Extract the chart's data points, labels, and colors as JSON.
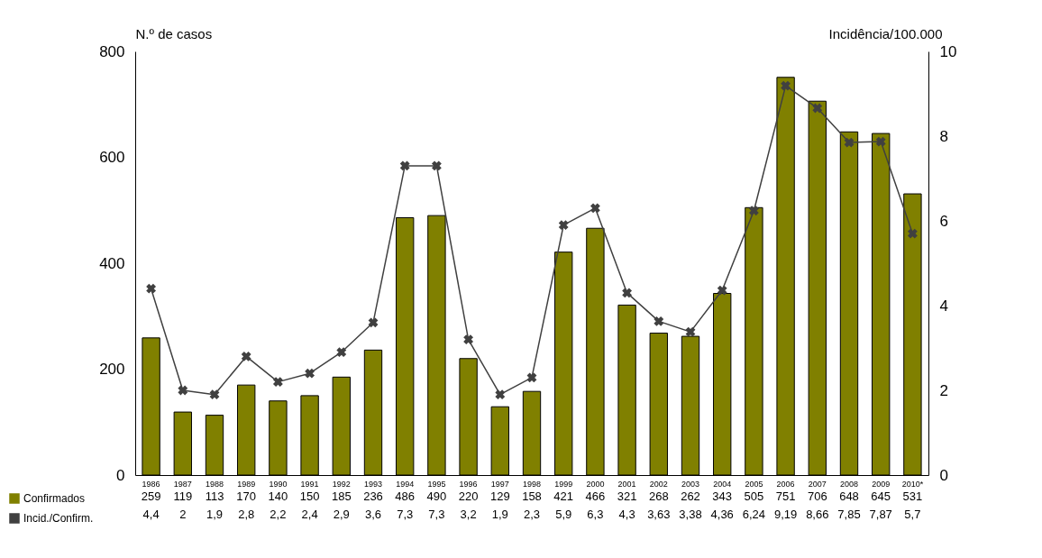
{
  "chart_data": {
    "type": "bar",
    "categories": [
      "1986",
      "1987",
      "1988",
      "1989",
      "1990",
      "1991",
      "1992",
      "1993",
      "1994",
      "1995",
      "1996",
      "1997",
      "1998",
      "1999",
      "2000",
      "2001",
      "2002",
      "2003",
      "2004",
      "2005",
      "2006",
      "2007",
      "2008",
      "2009",
      "2010*"
    ],
    "ylabel": "N.º de casos",
    "y2label": "Incidência/100.000",
    "ylim": [
      0,
      800
    ],
    "yticks": [
      0,
      200,
      400,
      600,
      800
    ],
    "y2lim": [
      0,
      10
    ],
    "y2ticks": [
      0,
      2,
      4,
      6,
      8,
      10
    ],
    "series": [
      {
        "name": "Confirmados",
        "color": "#808000",
        "values": [
          259,
          119,
          113,
          170,
          140,
          150,
          185,
          236,
          486,
          490,
          220,
          129,
          158,
          421,
          466,
          321,
          268,
          262,
          343,
          505,
          751,
          706,
          648,
          645,
          531
        ],
        "value_labels": [
          "259",
          "119",
          "113",
          "170",
          "140",
          "150",
          "185",
          "236",
          "486",
          "490",
          "220",
          "129",
          "158",
          "421",
          "466",
          "321",
          "268",
          "262",
          "343",
          "505",
          "751",
          "706",
          "648",
          "645",
          "531"
        ]
      },
      {
        "name": "Incid./Confirm.",
        "type": "line",
        "axis": "y2",
        "color": "#404040",
        "values": [
          4.4,
          2,
          1.9,
          2.8,
          2.2,
          2.4,
          2.9,
          3.6,
          7.3,
          7.3,
          3.2,
          1.9,
          2.3,
          5.9,
          6.3,
          4.3,
          3.63,
          3.38,
          4.36,
          6.24,
          9.19,
          8.66,
          7.85,
          7.87,
          5.7
        ],
        "value_labels": [
          "4,4",
          "2",
          "1,9",
          "2,8",
          "2,2",
          "2,4",
          "2,9",
          "3,6",
          "7,3",
          "7,3",
          "3,2",
          "1,9",
          "2,3",
          "5,9",
          "6,3",
          "4,3",
          "3,63",
          "3,38",
          "4,36",
          "6,24",
          "9,19",
          "8,66",
          "7,85",
          "7,87",
          "5,7"
        ]
      }
    ],
    "marker": "cross",
    "grid": false,
    "legend": "bottom left"
  }
}
